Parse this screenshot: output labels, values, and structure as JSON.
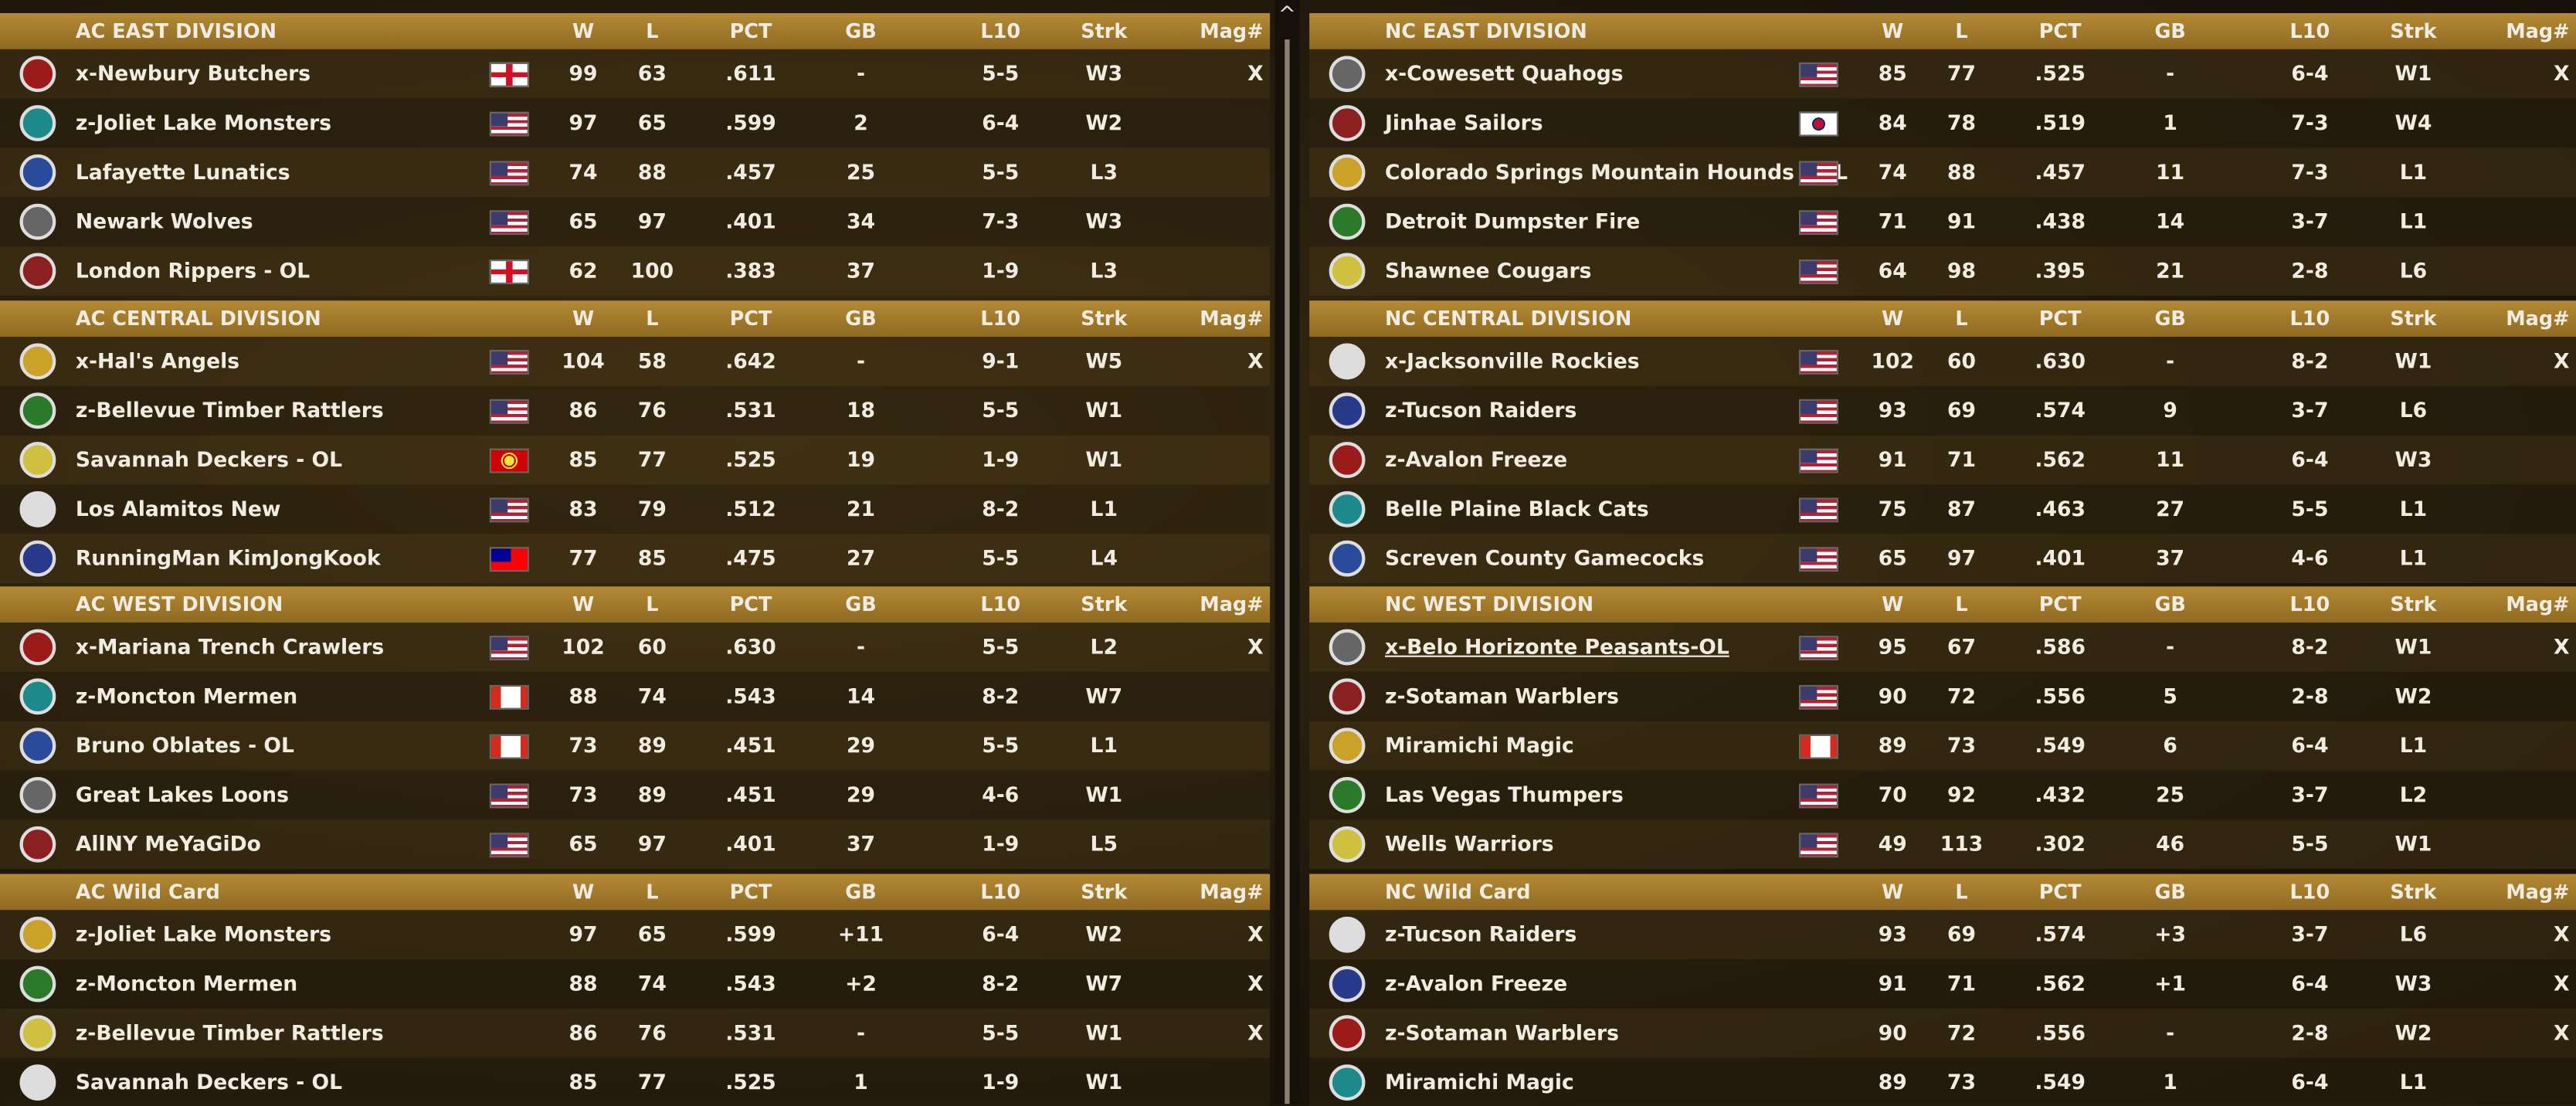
{
  "columns": [
    "W",
    "L",
    "PCT",
    "GB",
    "L10",
    "Strk",
    "Mag#"
  ],
  "panels": [
    {
      "sections": [
        {
          "title": "AC EAST DIVISION",
          "rows": [
            [
              "x-Newbury Butchers",
              99,
              63,
              ".611",
              "-",
              "5-5",
              "W3",
              "X"
            ],
            [
              "z-Joliet Lake Monsters",
              97,
              65,
              ".599",
              "2",
              "6-4",
              "W2"
            ],
            [
              "Lafayette Lunatics",
              74,
              88,
              ".457",
              "25",
              "5-5",
              "L3"
            ],
            [
              "Newark Wolves",
              65,
              97,
              ".401",
              "34",
              "7-3",
              "W3"
            ],
            [
              "London Rippers - OL",
              62,
              100,
              ".383",
              "37",
              "1-9",
              "L3"
            ]
          ]
        },
        {
          "title": "AC CENTRAL DIVISION",
          "rows": [
            [
              "x-Hal's Angels",
              104,
              58,
              ".642",
              "-",
              "9-1",
              "W5",
              "X"
            ],
            [
              "z-Bellevue Timber Rattlers",
              86,
              76,
              ".531",
              "18",
              "5-5",
              "W1"
            ],
            [
              "Savannah Deckers - OL",
              85,
              77,
              ".525",
              "19",
              "1-9",
              "W1"
            ],
            [
              "Los Alamitos New",
              83,
              79,
              ".512",
              "21",
              "8-2",
              "L1"
            ],
            [
              "RunningMan KimJongKook",
              77,
              85,
              ".475",
              "27",
              "5-5",
              "L4"
            ]
          ]
        },
        {
          "title": "AC WEST DIVISION",
          "rows": [
            [
              "x-Mariana Trench Crawlers",
              102,
              60,
              ".630",
              "-",
              "5-5",
              "L2",
              "X"
            ],
            [
              "z-Moncton Mermen",
              88,
              74,
              ".543",
              "14",
              "8-2",
              "W7"
            ],
            [
              "Bruno Oblates - OL",
              73,
              89,
              ".451",
              "29",
              "5-5",
              "L1"
            ],
            [
              "Great Lakes Loons",
              73,
              89,
              ".451",
              "29",
              "4-6",
              "W1"
            ],
            [
              "AllNY MeYaGiDo",
              65,
              97,
              ".401",
              "37",
              "1-9",
              "L5"
            ]
          ]
        },
        {
          "title": "AC  Wild Card",
          "rows": [
            [
              "z-Joliet Lake Monsters",
              97,
              65,
              ".599",
              "+11",
              "6-4",
              "W2",
              "X"
            ],
            [
              "z-Moncton Mermen",
              88,
              74,
              ".543",
              "+2",
              "8-2",
              "W7",
              "X"
            ],
            [
              "z-Bellevue Timber Rattlers",
              86,
              76,
              ".531",
              "-",
              "5-5",
              "W1",
              "X"
            ],
            [
              "Savannah Deckers - OL",
              85,
              77,
              ".525",
              "1",
              "1-9",
              "W1"
            ]
          ]
        }
      ]
    },
    {
      "sections": [
        {
          "title": "NC EAST DIVISION",
          "rows": [
            [
              "x-Cowesett Quahogs",
              85,
              77,
              ".525",
              "-",
              "6-4",
              "W1",
              "X"
            ],
            [
              "Jinhae Sailors",
              84,
              78,
              ".519",
              "1",
              "7-3",
              "W4"
            ],
            [
              "Colorado Springs Mountain Hounds - OL",
              74,
              88,
              ".457",
              "11",
              "7-3",
              "L1"
            ],
            [
              "Detroit Dumpster Fire",
              71,
              91,
              ".438",
              "14",
              "3-7",
              "L1"
            ],
            [
              "Shawnee Cougars",
              64,
              98,
              ".395",
              "21",
              "2-8",
              "L6"
            ]
          ]
        },
        {
          "title": "NC CENTRAL DIVISION",
          "rows": [
            [
              "x-Jacksonville Rockies",
              102,
              60,
              ".630",
              "-",
              "8-2",
              "W1",
              "X"
            ],
            [
              "z-Tucson Raiders",
              93,
              69,
              ".574",
              "9",
              "3-7",
              "L6"
            ],
            [
              "z-Avalon Freeze",
              91,
              71,
              ".562",
              "11",
              "6-4",
              "W3"
            ],
            [
              "Belle Plaine Black Cats",
              75,
              87,
              ".463",
              "27",
              "5-5",
              "L1"
            ],
            [
              "Screven County Gamecocks",
              65,
              97,
              ".401",
              "37",
              "4-6",
              "L1"
            ]
          ]
        },
        {
          "title": "NC WEST DIVISION",
          "rows": [
            [
              "x-Belo Horizonte Peasants-OL",
              95,
              67,
              ".586",
              "-",
              "8-2",
              "W1",
              "X"
            ],
            [
              "z-Sotaman Warblers",
              90,
              72,
              ".556",
              "5",
              "2-8",
              "W2"
            ],
            [
              "Miramichi Magic",
              89,
              73,
              ".549",
              "6",
              "6-4",
              "L1"
            ],
            [
              "Las Vegas Thumpers",
              70,
              92,
              ".432",
              "25",
              "3-7",
              "L2"
            ],
            [
              "Wells Warriors",
              49,
              113,
              ".302",
              "46",
              "5-5",
              "W1"
            ]
          ]
        },
        {
          "title": "NC  Wild Card",
          "rows": [
            [
              "z-Tucson Raiders",
              93,
              69,
              ".574",
              "+3",
              "3-7",
              "L6",
              "X"
            ],
            [
              "z-Avalon Freeze",
              91,
              71,
              ".562",
              "+1",
              "6-4",
              "W3",
              "X"
            ],
            [
              "z-Sotaman Warblers",
              90,
              72,
              ".556",
              "-",
              "2-8",
              "W2",
              "X"
            ],
            [
              "Miramichi Magic",
              89,
              73,
              ".549",
              "1",
              "6-4",
              "L1"
            ]
          ]
        }
      ]
    }
  ]
}
